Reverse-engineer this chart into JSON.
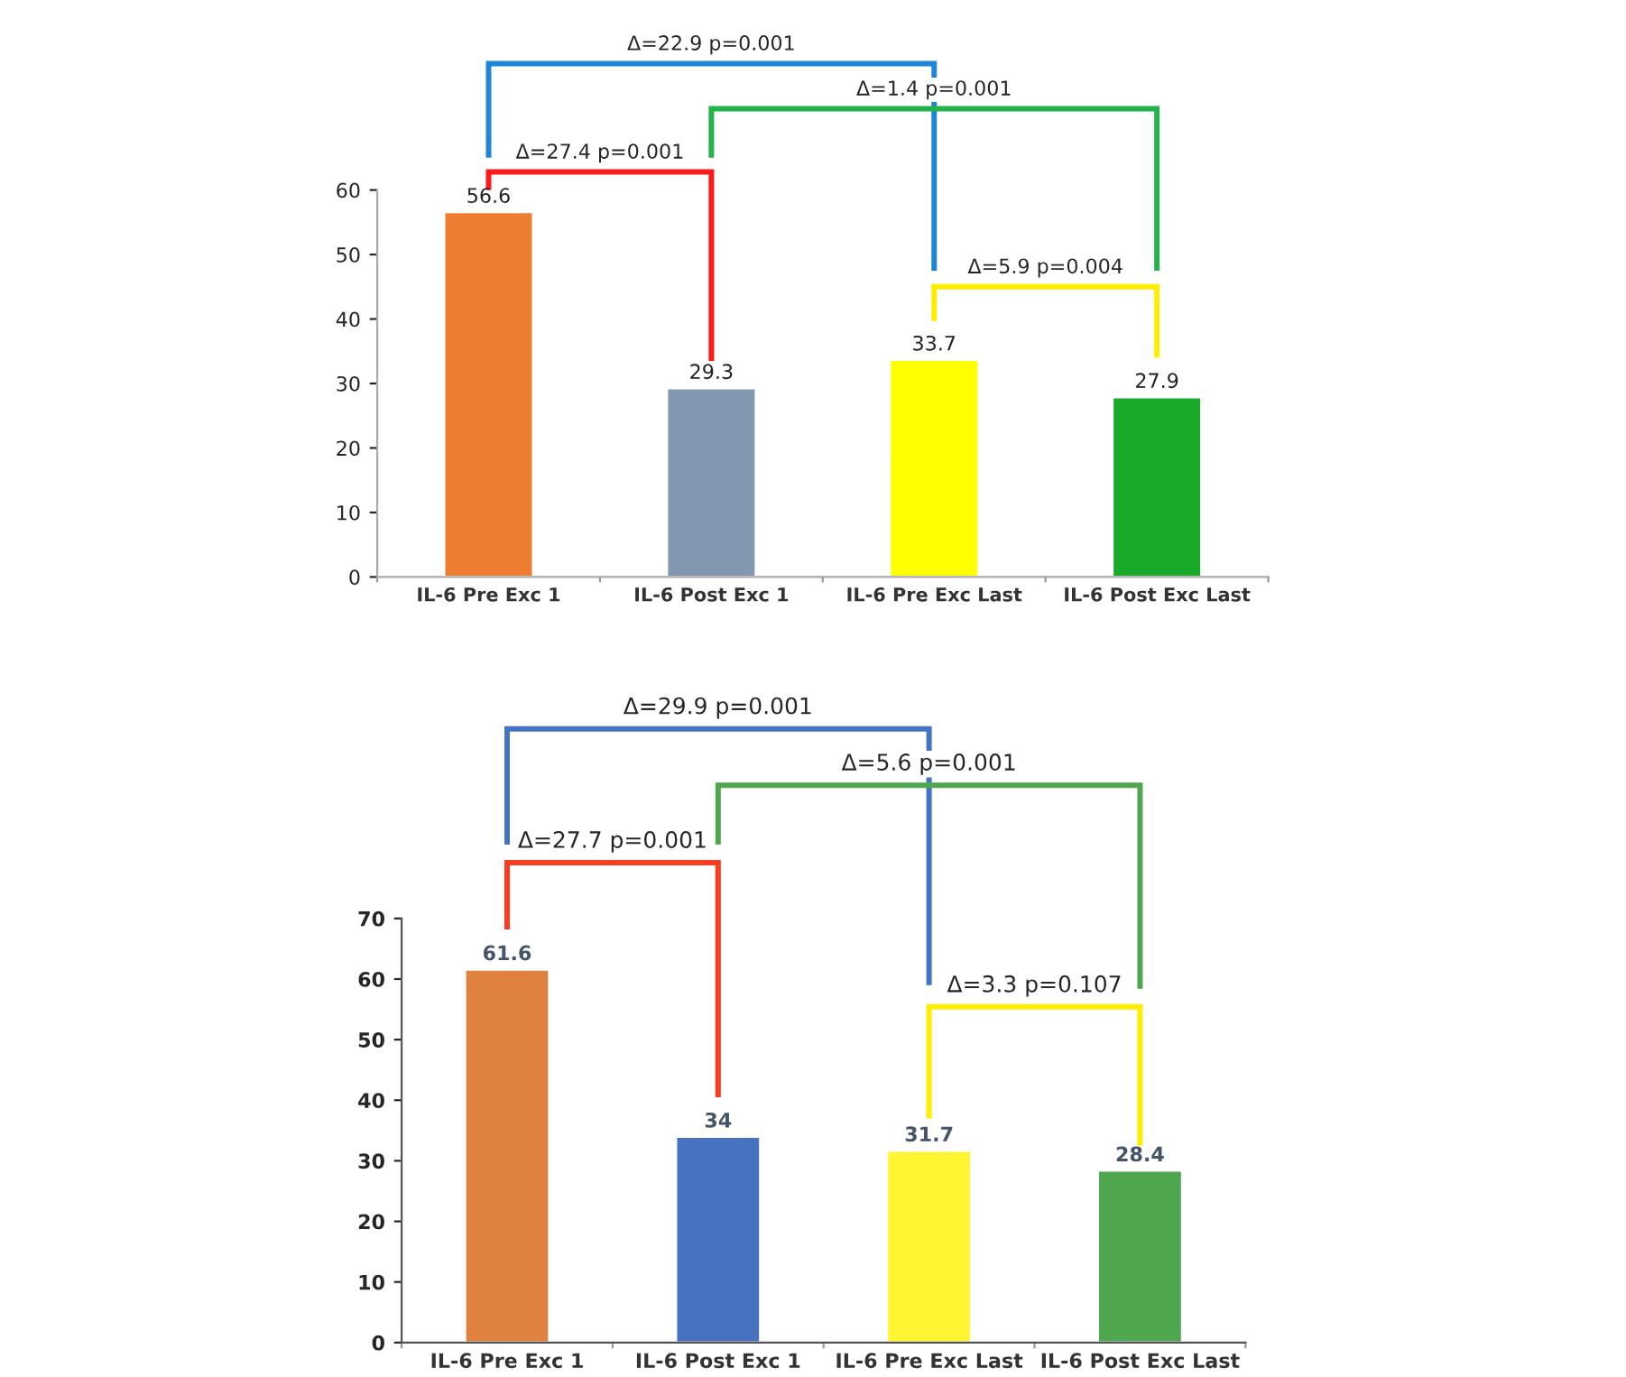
{
  "chart_data": [
    {
      "type": "bar",
      "categories": [
        "IL-6 Pre Exc 1",
        "IL-6 Post Exc 1",
        "IL-6 Pre Exc Last",
        "IL-6 Post Exc Last"
      ],
      "values": [
        56.6,
        29.3,
        33.7,
        27.9
      ],
      "colors": [
        "#ed7d31",
        "#8497b0",
        "#ffff00",
        "#1aaa2a"
      ],
      "ylim": [
        0,
        60
      ],
      "yticks": [
        0,
        10,
        20,
        30,
        40,
        50,
        60
      ],
      "data_labels": true,
      "grid": false,
      "legend": false,
      "annotations": [
        "Δ=22.9 p=0.001",
        "Δ=1.4 p=0.001",
        "Δ=27.4 p=0.001",
        "Δ=5.9 p=0.004"
      ]
    },
    {
      "type": "bar",
      "categories": [
        "IL-6 Pre Exc 1",
        "IL-6 Post Exc 1",
        "IL-6 Pre Exc Last",
        "IL-6 Post Exc Last"
      ],
      "values": [
        61.6,
        34,
        31.7,
        28.4
      ],
      "colors": [
        "#e0823f",
        "#4672c1",
        "#fff533",
        "#4ea64f"
      ],
      "ylim": [
        0,
        70
      ],
      "yticks": [
        0,
        10,
        20,
        30,
        40,
        50,
        60,
        70
      ],
      "data_labels": true,
      "grid": false,
      "legend": false,
      "annotations": [
        "Δ=29.9 p=0.001",
        "Δ=5.6 p=0.001",
        "Δ=27.7 p=0.001",
        "Δ=3.3 p=0.107"
      ]
    }
  ]
}
